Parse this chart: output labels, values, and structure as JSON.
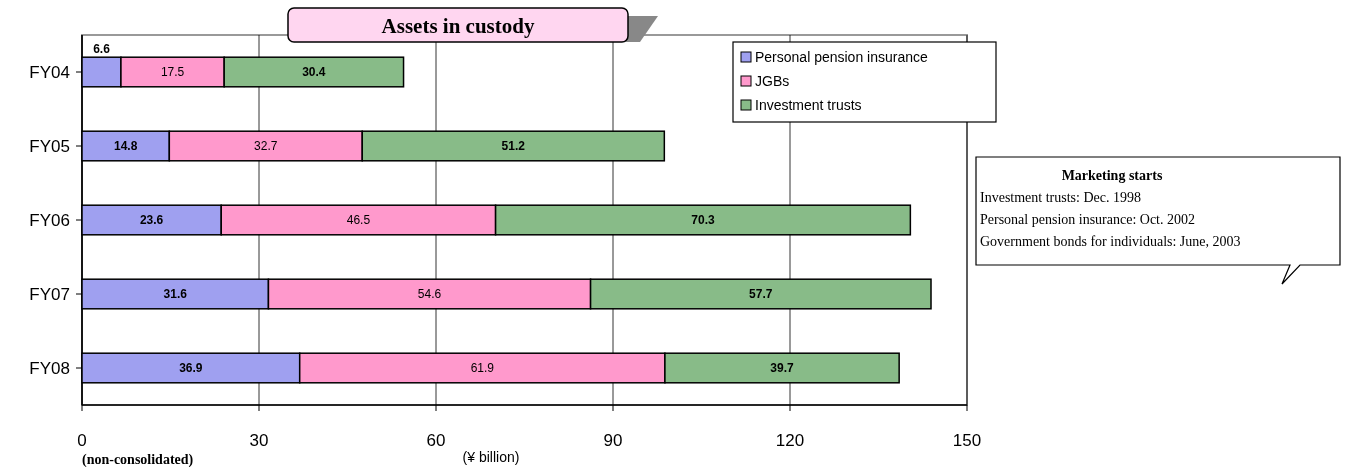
{
  "chart_data": {
    "type": "bar",
    "orientation": "horizontal",
    "stacked": true,
    "title": "Assets in custody",
    "xlabel": "(¥ billion)",
    "categories": [
      "FY04",
      "FY05",
      "FY06",
      "FY07",
      "FY08"
    ],
    "series": [
      {
        "name": "Personal pension insurance",
        "color": "#9fa0f0",
        "values": [
          6.6,
          14.8,
          23.6,
          31.6,
          36.9
        ]
      },
      {
        "name": "JGBs",
        "color": "#ff99cc",
        "values": [
          17.5,
          32.7,
          46.5,
          54.6,
          61.9
        ]
      },
      {
        "name": "Investment trusts",
        "color": "#88bb88",
        "values": [
          30.4,
          51.2,
          70.3,
          57.7,
          39.7
        ]
      }
    ],
    "xlim": [
      0,
      150
    ],
    "xticks": [
      0,
      30,
      60,
      90,
      120,
      150
    ],
    "grid": "x",
    "legend": "top right",
    "data_labels": true,
    "annotations": [
      "Marketing starts",
      "Investment trusts: Dec. 1998",
      "Personal pension insurance: Oct. 2002",
      "Government bonds for individuals: June, 2003",
      "(non-consolidated)"
    ]
  }
}
